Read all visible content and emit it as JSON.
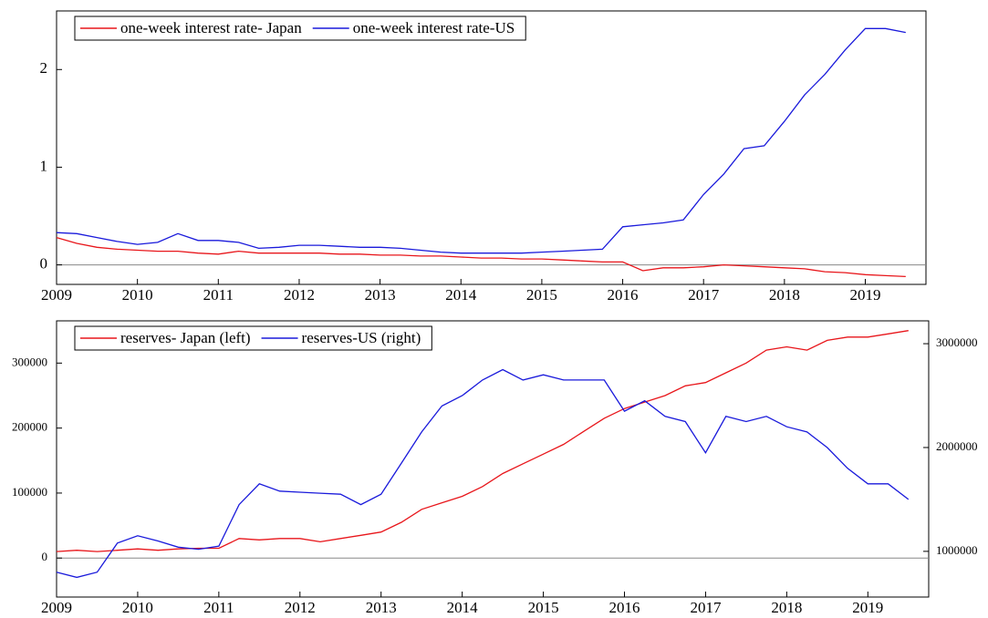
{
  "chart_data": [
    {
      "type": "line",
      "x": [
        2009,
        2009.25,
        2009.5,
        2009.75,
        2010,
        2010.25,
        2010.5,
        2010.75,
        2011,
        2011.25,
        2011.5,
        2011.75,
        2012,
        2012.25,
        2012.5,
        2012.75,
        2013,
        2013.25,
        2013.5,
        2013.75,
        2014,
        2014.25,
        2014.5,
        2014.75,
        2015,
        2015.25,
        2015.5,
        2015.75,
        2016,
        2016.25,
        2016.5,
        2016.75,
        2017,
        2017.25,
        2017.5,
        2017.75,
        2018,
        2018.25,
        2018.5,
        2018.75,
        2019,
        2019.25,
        2019.5
      ],
      "series": [
        {
          "name": "one-week interest rate- Japan",
          "color": "#e8161b",
          "values": [
            0.28,
            0.22,
            0.18,
            0.16,
            0.15,
            0.14,
            0.14,
            0.12,
            0.11,
            0.14,
            0.12,
            0.12,
            0.12,
            0.12,
            0.11,
            0.11,
            0.1,
            0.1,
            0.09,
            0.09,
            0.08,
            0.07,
            0.07,
            0.06,
            0.06,
            0.05,
            0.04,
            0.03,
            0.03,
            -0.06,
            -0.03,
            -0.03,
            -0.02,
            0.0,
            -0.01,
            -0.02,
            -0.03,
            -0.04,
            -0.07,
            -0.08,
            -0.1,
            -0.11,
            -0.12
          ]
        },
        {
          "name": "one-week interest rate-US",
          "color": "#1a1adb",
          "values": [
            0.33,
            0.32,
            0.28,
            0.24,
            0.21,
            0.23,
            0.32,
            0.25,
            0.25,
            0.23,
            0.17,
            0.18,
            0.2,
            0.2,
            0.19,
            0.18,
            0.18,
            0.17,
            0.15,
            0.13,
            0.12,
            0.12,
            0.12,
            0.12,
            0.13,
            0.14,
            0.15,
            0.16,
            0.39,
            0.41,
            0.43,
            0.46,
            0.72,
            0.93,
            1.19,
            1.22,
            1.47,
            1.74,
            1.95,
            2.2,
            2.42,
            2.42,
            2.38
          ]
        }
      ],
      "xlim": [
        2009,
        2019.75
      ],
      "xticks": [
        2009,
        2010,
        2011,
        2012,
        2013,
        2014,
        2015,
        2016,
        2017,
        2018,
        2019
      ],
      "ylim": [
        -0.2,
        2.6
      ],
      "yticks": [
        0,
        1,
        2
      ]
    },
    {
      "type": "line",
      "x": [
        2009,
        2009.25,
        2009.5,
        2009.75,
        2010,
        2010.25,
        2010.5,
        2010.75,
        2011,
        2011.25,
        2011.5,
        2011.75,
        2012,
        2012.25,
        2012.5,
        2012.75,
        2013,
        2013.25,
        2013.5,
        2013.75,
        2014,
        2014.25,
        2014.5,
        2014.75,
        2015,
        2015.25,
        2015.5,
        2015.75,
        2016,
        2016.25,
        2016.5,
        2016.75,
        2017,
        2017.25,
        2017.5,
        2017.75,
        2018,
        2018.25,
        2018.5,
        2018.75,
        2019,
        2019.25,
        2019.5
      ],
      "series": [
        {
          "name": "reserves- Japan (left)",
          "color": "#e8161b",
          "values": [
            10000,
            12000,
            10000,
            12000,
            14000,
            12000,
            14000,
            15000,
            15000,
            30000,
            28000,
            30000,
            30000,
            25000,
            30000,
            35000,
            40000,
            55000,
            75000,
            85000,
            95000,
            110000,
            130000,
            145000,
            160000,
            175000,
            195000,
            215000,
            230000,
            240000,
            250000,
            265000,
            270000,
            285000,
            300000,
            320000,
            325000,
            320000,
            335000,
            340000,
            340000,
            345000,
            350000
          ]
        },
        {
          "name": "reserves-US (right)",
          "color": "#1a1adb",
          "axis": "y2",
          "values": [
            800000,
            750000,
            800000,
            1080000,
            1150000,
            1100000,
            1040000,
            1020000,
            1050000,
            1450000,
            1650000,
            1580000,
            1570000,
            1560000,
            1550000,
            1450000,
            1550000,
            1850000,
            2150000,
            2400000,
            2500000,
            2650000,
            2750000,
            2650000,
            2700000,
            2650000,
            2650000,
            2650000,
            2350000,
            2450000,
            2300000,
            2250000,
            1950000,
            2300000,
            2250000,
            2300000,
            2200000,
            2150000,
            2000000,
            1800000,
            1650000,
            1650000,
            1500000
          ]
        }
      ],
      "xlim": [
        2009,
        2019.75
      ],
      "xticks": [
        2009,
        2010,
        2011,
        2012,
        2013,
        2014,
        2015,
        2016,
        2017,
        2018,
        2019
      ],
      "ylim": [
        -60000,
        365000
      ],
      "yticks": [
        0,
        100000,
        200000,
        300000
      ],
      "y2lim": [
        560000,
        3220000
      ],
      "y2ticks": [
        1000000,
        2000000,
        3000000
      ]
    }
  ]
}
